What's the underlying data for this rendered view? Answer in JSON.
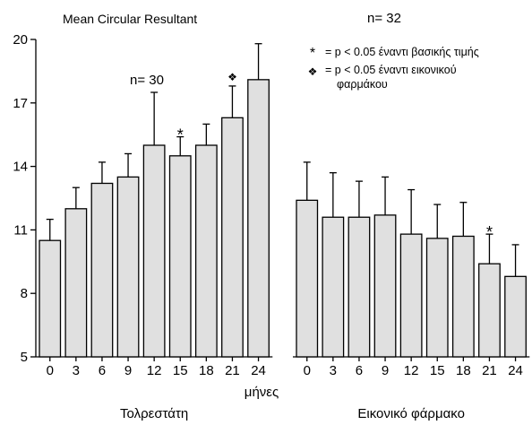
{
  "chart_data": {
    "type": "bar",
    "title": "Mean Circular Resultant",
    "xlabel": "μήνες",
    "ylabel": "",
    "ylim": [
      5,
      20
    ],
    "yticks": [
      5,
      8,
      11,
      14,
      17,
      20
    ],
    "grid": false,
    "bar_color": "#e0e0e0",
    "groups": [
      {
        "name": "Τολρεστάτη",
        "n_label": "n= 30",
        "categories": [
          "0",
          "3",
          "6",
          "9",
          "12",
          "15",
          "18",
          "21",
          "24"
        ],
        "values": [
          10.5,
          12.0,
          13.2,
          13.5,
          15.0,
          14.5,
          15.0,
          16.3,
          18.1
        ],
        "errors": [
          1.0,
          1.0,
          1.0,
          1.1,
          2.5,
          0.9,
          1.0,
          1.5,
          1.7
        ],
        "markers": [
          "",
          "",
          "",
          "",
          "",
          "*",
          "",
          "❖",
          ""
        ]
      },
      {
        "name": "Εικονικό φάρμακο",
        "n_label": "n= 32",
        "categories": [
          "0",
          "3",
          "6",
          "9",
          "12",
          "15",
          "18",
          "21",
          "24"
        ],
        "values": [
          12.4,
          11.6,
          11.6,
          11.7,
          10.8,
          10.6,
          10.7,
          9.4,
          8.8
        ],
        "errors": [
          1.8,
          2.1,
          1.7,
          1.8,
          2.1,
          1.6,
          1.6,
          1.4,
          1.5
        ],
        "markers": [
          "",
          "",
          "",
          "",
          "",
          "",
          "",
          "*",
          ""
        ]
      }
    ],
    "legend": [
      {
        "symbol": "*",
        "label": "= p < 0.05 έναντι βασικής τιμής"
      },
      {
        "symbol": "❖",
        "label": "= p < 0.05 έναντι εικονικού φαρμάκου"
      }
    ],
    "legend_position": "top-right"
  }
}
